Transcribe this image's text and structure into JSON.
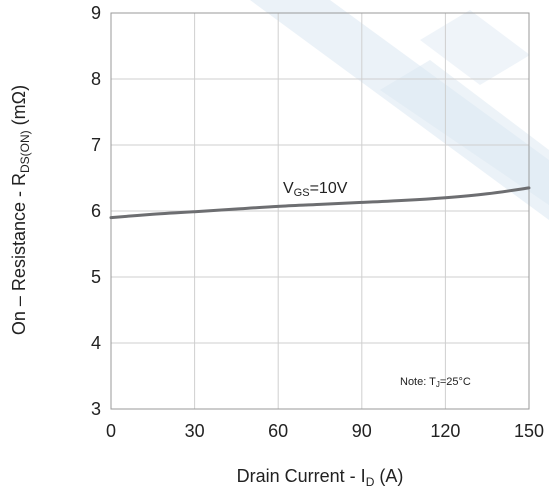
{
  "chart_data": {
    "type": "line",
    "title": "",
    "xlabel_main": "Drain Current - I",
    "xlabel_sub": "D",
    "xlabel_tail": " (A)",
    "ylabel_main": "On – Resistance - R",
    "ylabel_sub": "DS(ON)",
    "ylabel_tail": " (mΩ)",
    "xlim": [
      0,
      150
    ],
    "ylim": [
      3,
      9
    ],
    "xticks": [
      0,
      30,
      60,
      90,
      120,
      150
    ],
    "yticks": [
      3,
      4,
      5,
      6,
      7,
      8,
      9
    ],
    "grid": true,
    "series": [
      {
        "name_main": "V",
        "name_sub": "GS",
        "name_tail": "=10V",
        "color": "#6d6e71",
        "x": [
          0,
          15,
          30,
          45,
          60,
          75,
          90,
          105,
          120,
          135,
          150
        ],
        "y": [
          5.9,
          5.95,
          5.99,
          6.03,
          6.07,
          6.1,
          6.13,
          6.16,
          6.2,
          6.26,
          6.35
        ]
      }
    ],
    "annotation": {
      "main": "Note: T",
      "sub": "J",
      "tail": "=25°C"
    },
    "colors": {
      "grid": "#cfcfcf",
      "axis": "#9a9a9a",
      "watermark": "#dbe7f2"
    }
  }
}
